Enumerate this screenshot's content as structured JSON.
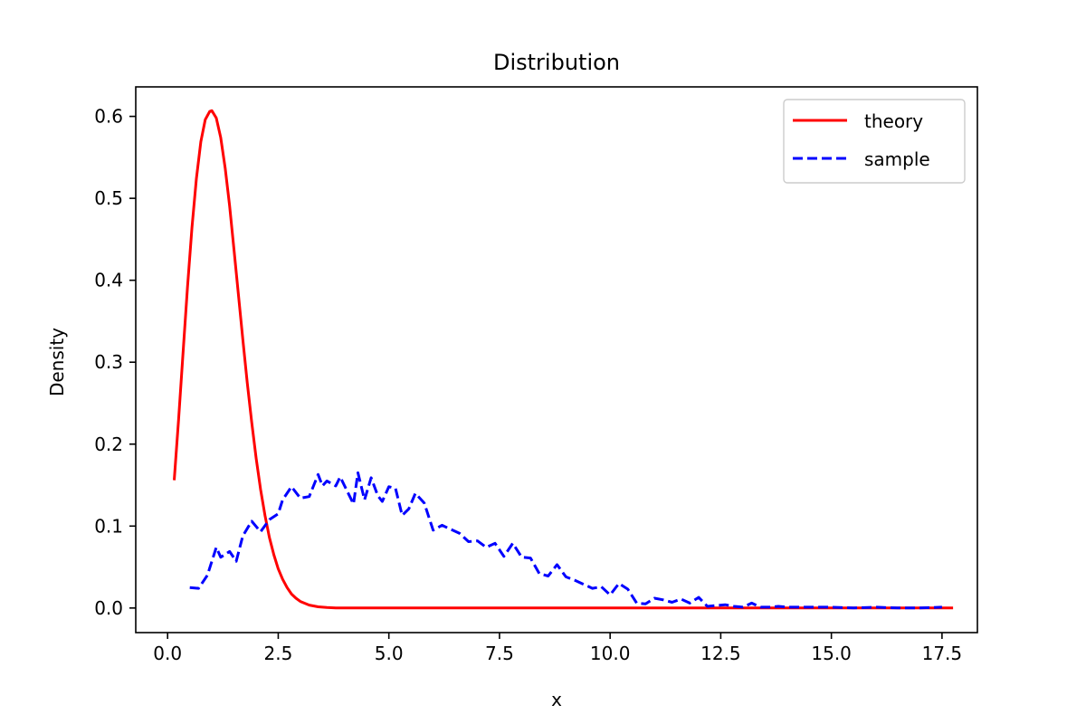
{
  "chart_data": {
    "type": "line",
    "title": "Distribution",
    "xlabel": "x",
    "ylabel": "Density",
    "xlim": [
      -0.72,
      18.3
    ],
    "ylim": [
      -0.03,
      0.636
    ],
    "xticks": [
      0.0,
      2.5,
      5.0,
      7.5,
      10.0,
      12.5,
      15.0,
      17.5
    ],
    "xtick_labels": [
      "0.0",
      "2.5",
      "5.0",
      "7.5",
      "10.0",
      "12.5",
      "15.0",
      "17.5"
    ],
    "yticks": [
      0.0,
      0.1,
      0.2,
      0.3,
      0.4,
      0.5,
      0.6
    ],
    "ytick_labels": [
      "0.0",
      "0.1",
      "0.2",
      "0.3",
      "0.4",
      "0.5",
      "0.6"
    ],
    "grid": false,
    "legend_position": "top-right",
    "series": [
      {
        "name": "theory",
        "color": "#ff0000",
        "style": "solid",
        "x": [
          0.15,
          0.25,
          0.35,
          0.45,
          0.55,
          0.65,
          0.75,
          0.85,
          0.95,
          1.0,
          1.1,
          1.2,
          1.3,
          1.4,
          1.5,
          1.6,
          1.7,
          1.8,
          1.9,
          2.0,
          2.1,
          2.2,
          2.3,
          2.4,
          2.5,
          2.6,
          2.7,
          2.8,
          2.9,
          3.0,
          3.2,
          3.4,
          3.6,
          3.8,
          4.0,
          4.5,
          5.0,
          6.0,
          8.0,
          10.0,
          12.5,
          15.0,
          17.75
        ],
        "y": [
          0.156,
          0.231,
          0.312,
          0.392,
          0.464,
          0.524,
          0.569,
          0.596,
          0.606,
          0.607,
          0.598,
          0.574,
          0.537,
          0.491,
          0.438,
          0.383,
          0.328,
          0.275,
          0.227,
          0.183,
          0.145,
          0.113,
          0.086,
          0.065,
          0.048,
          0.035,
          0.025,
          0.017,
          0.012,
          0.008,
          0.0036,
          0.0015,
          0.0006,
          0.0002,
          0.0001,
          0.0,
          0.0,
          0.0,
          0.0,
          0.0,
          0.0,
          0.0,
          0.0
        ]
      },
      {
        "name": "sample",
        "color": "#0000ff",
        "style": "dashed",
        "x": [
          0.5,
          0.7,
          0.9,
          1.1,
          1.2,
          1.4,
          1.55,
          1.7,
          1.9,
          2.1,
          2.3,
          2.5,
          2.6,
          2.8,
          3.0,
          3.2,
          3.4,
          3.5,
          3.6,
          3.8,
          3.9,
          4.1,
          4.2,
          4.3,
          4.45,
          4.6,
          4.75,
          4.85,
          5.0,
          5.15,
          5.3,
          5.45,
          5.6,
          5.8,
          6.0,
          6.2,
          6.4,
          6.6,
          6.8,
          7.0,
          7.2,
          7.4,
          7.6,
          7.8,
          8.0,
          8.2,
          8.4,
          8.6,
          8.8,
          9.0,
          9.2,
          9.4,
          9.6,
          9.8,
          10.0,
          10.2,
          10.4,
          10.6,
          10.8,
          11.0,
          11.2,
          11.4,
          11.6,
          11.8,
          12.0,
          12.2,
          12.4,
          12.6,
          12.8,
          13.0,
          13.2,
          13.4,
          13.6,
          13.8,
          14.0,
          14.5,
          15.0,
          15.5,
          16.0,
          16.5,
          17.0,
          17.5
        ],
        "y": [
          0.025,
          0.024,
          0.04,
          0.074,
          0.062,
          0.069,
          0.057,
          0.088,
          0.106,
          0.093,
          0.108,
          0.115,
          0.132,
          0.148,
          0.134,
          0.136,
          0.163,
          0.149,
          0.155,
          0.149,
          0.16,
          0.138,
          0.127,
          0.165,
          0.132,
          0.159,
          0.137,
          0.13,
          0.148,
          0.146,
          0.113,
          0.121,
          0.14,
          0.128,
          0.095,
          0.101,
          0.096,
          0.091,
          0.081,
          0.082,
          0.074,
          0.079,
          0.063,
          0.079,
          0.062,
          0.061,
          0.042,
          0.039,
          0.053,
          0.038,
          0.034,
          0.029,
          0.024,
          0.026,
          0.016,
          0.03,
          0.023,
          0.006,
          0.005,
          0.012,
          0.01,
          0.007,
          0.011,
          0.006,
          0.013,
          0.002,
          0.003,
          0.004,
          0.002,
          0.001,
          0.006,
          0.001,
          0.001,
          0.002,
          0.001,
          0.001,
          0.001,
          0.0,
          0.001,
          0.0,
          0.0,
          0.001
        ]
      }
    ]
  }
}
